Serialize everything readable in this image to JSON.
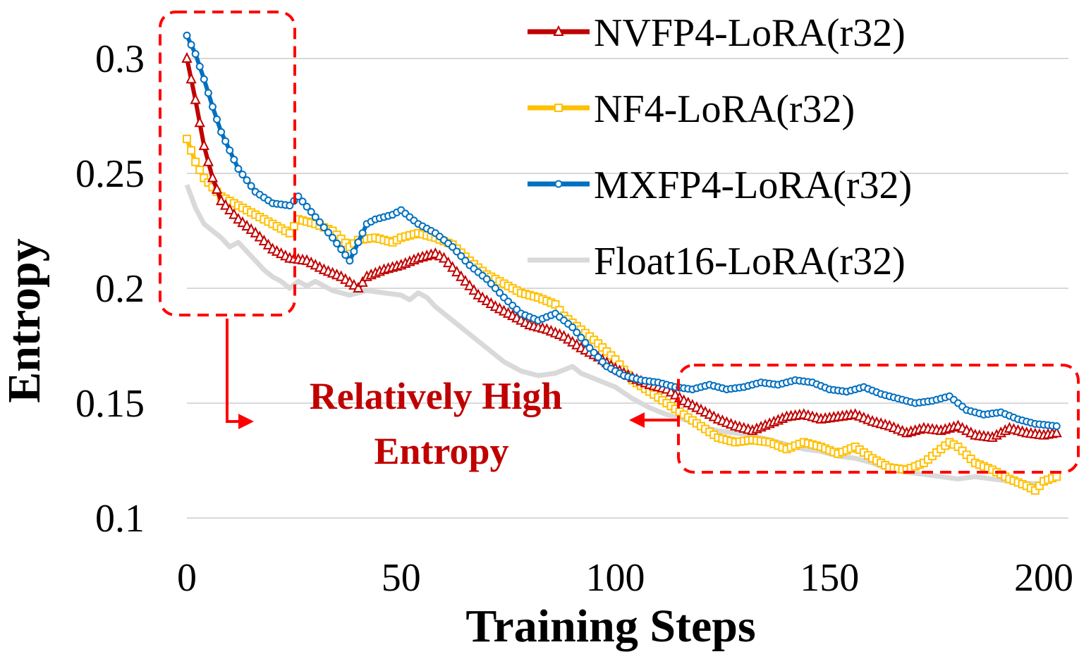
{
  "chart_data": {
    "type": "line",
    "title": "",
    "xlabel": "Training Steps",
    "ylabel": "Entropy",
    "xlim": [
      0,
      200
    ],
    "ylim": [
      0.1,
      0.3
    ],
    "x_ticks": [
      0,
      50,
      100,
      150,
      200
    ],
    "x_tick_labels": [
      "0",
      "50",
      "100",
      "150",
      "200"
    ],
    "y_ticks": [
      0.1,
      0.15,
      0.2,
      0.25,
      0.3
    ],
    "y_tick_labels": [
      "0.1",
      "0.15",
      "0.2",
      "0.25",
      "0.3"
    ],
    "grid": "horizontal",
    "legend_position": "top-right",
    "series": [
      {
        "name": "NVFP4-LoRA(r32)",
        "color": "#c00000",
        "marker": "triangle",
        "points": [
          [
            0,
            0.3
          ],
          [
            2,
            0.282
          ],
          [
            4,
            0.262
          ],
          [
            6,
            0.248
          ],
          [
            8,
            0.238
          ],
          [
            12,
            0.23
          ],
          [
            16,
            0.224
          ],
          [
            20,
            0.217
          ],
          [
            24,
            0.213
          ],
          [
            28,
            0.212
          ],
          [
            32,
            0.208
          ],
          [
            36,
            0.205
          ],
          [
            40,
            0.2
          ],
          [
            42,
            0.205
          ],
          [
            46,
            0.208
          ],
          [
            50,
            0.21
          ],
          [
            54,
            0.213
          ],
          [
            58,
            0.215
          ],
          [
            60,
            0.213
          ],
          [
            64,
            0.205
          ],
          [
            68,
            0.197
          ],
          [
            72,
            0.192
          ],
          [
            76,
            0.188
          ],
          [
            80,
            0.184
          ],
          [
            84,
            0.182
          ],
          [
            88,
            0.179
          ],
          [
            92,
            0.174
          ],
          [
            96,
            0.17
          ],
          [
            100,
            0.165
          ],
          [
            104,
            0.161
          ],
          [
            108,
            0.158
          ],
          [
            112,
            0.156
          ],
          [
            116,
            0.151
          ],
          [
            120,
            0.147
          ],
          [
            124,
            0.143
          ],
          [
            128,
            0.14
          ],
          [
            132,
            0.138
          ],
          [
            136,
            0.141
          ],
          [
            140,
            0.144
          ],
          [
            144,
            0.145
          ],
          [
            148,
            0.143
          ],
          [
            152,
            0.144
          ],
          [
            156,
            0.145
          ],
          [
            160,
            0.142
          ],
          [
            164,
            0.14
          ],
          [
            168,
            0.137
          ],
          [
            172,
            0.139
          ],
          [
            176,
            0.138
          ],
          [
            180,
            0.14
          ],
          [
            184,
            0.136
          ],
          [
            188,
            0.135
          ],
          [
            192,
            0.139
          ],
          [
            196,
            0.137
          ],
          [
            200,
            0.136
          ],
          [
            203,
            0.137
          ]
        ]
      },
      {
        "name": "NF4-LoRA(r32)",
        "color": "#ffc000",
        "marker": "square",
        "points": [
          [
            0,
            0.265
          ],
          [
            2,
            0.255
          ],
          [
            4,
            0.248
          ],
          [
            6,
            0.244
          ],
          [
            8,
            0.24
          ],
          [
            12,
            0.236
          ],
          [
            16,
            0.232
          ],
          [
            20,
            0.228
          ],
          [
            24,
            0.224
          ],
          [
            26,
            0.23
          ],
          [
            30,
            0.228
          ],
          [
            34,
            0.225
          ],
          [
            38,
            0.218
          ],
          [
            40,
            0.221
          ],
          [
            44,
            0.222
          ],
          [
            48,
            0.22
          ],
          [
            50,
            0.222
          ],
          [
            54,
            0.224
          ],
          [
            58,
            0.222
          ],
          [
            62,
            0.219
          ],
          [
            66,
            0.212
          ],
          [
            70,
            0.206
          ],
          [
            74,
            0.202
          ],
          [
            78,
            0.198
          ],
          [
            82,
            0.196
          ],
          [
            86,
            0.193
          ],
          [
            88,
            0.188
          ],
          [
            92,
            0.182
          ],
          [
            96,
            0.176
          ],
          [
            100,
            0.169
          ],
          [
            104,
            0.16
          ],
          [
            108,
            0.155
          ],
          [
            112,
            0.15
          ],
          [
            116,
            0.145
          ],
          [
            120,
            0.14
          ],
          [
            124,
            0.135
          ],
          [
            128,
            0.133
          ],
          [
            132,
            0.134
          ],
          [
            136,
            0.133
          ],
          [
            140,
            0.13
          ],
          [
            144,
            0.133
          ],
          [
            148,
            0.131
          ],
          [
            152,
            0.128
          ],
          [
            156,
            0.131
          ],
          [
            160,
            0.126
          ],
          [
            164,
            0.122
          ],
          [
            168,
            0.121
          ],
          [
            172,
            0.124
          ],
          [
            176,
            0.13
          ],
          [
            178,
            0.133
          ],
          [
            180,
            0.131
          ],
          [
            184,
            0.124
          ],
          [
            188,
            0.121
          ],
          [
            192,
            0.117
          ],
          [
            196,
            0.114
          ],
          [
            198,
            0.112
          ],
          [
            200,
            0.116
          ],
          [
            203,
            0.118
          ]
        ]
      },
      {
        "name": "MXFP4-LoRA(r32)",
        "color": "#0070c0",
        "marker": "circle",
        "points": [
          [
            0,
            0.31
          ],
          [
            2,
            0.302
          ],
          [
            4,
            0.291
          ],
          [
            6,
            0.279
          ],
          [
            8,
            0.268
          ],
          [
            10,
            0.26
          ],
          [
            12,
            0.252
          ],
          [
            16,
            0.242
          ],
          [
            20,
            0.237
          ],
          [
            24,
            0.236
          ],
          [
            26,
            0.24
          ],
          [
            30,
            0.231
          ],
          [
            34,
            0.222
          ],
          [
            38,
            0.212
          ],
          [
            40,
            0.22
          ],
          [
            42,
            0.228
          ],
          [
            44,
            0.23
          ],
          [
            48,
            0.232
          ],
          [
            50,
            0.234
          ],
          [
            54,
            0.228
          ],
          [
            58,
            0.224
          ],
          [
            62,
            0.218
          ],
          [
            66,
            0.21
          ],
          [
            70,
            0.204
          ],
          [
            74,
            0.196
          ],
          [
            78,
            0.189
          ],
          [
            82,
            0.186
          ],
          [
            86,
            0.189
          ],
          [
            90,
            0.183
          ],
          [
            94,
            0.174
          ],
          [
            98,
            0.166
          ],
          [
            102,
            0.162
          ],
          [
            106,
            0.16
          ],
          [
            110,
            0.159
          ],
          [
            114,
            0.157
          ],
          [
            118,
            0.156
          ],
          [
            122,
            0.158
          ],
          [
            126,
            0.156
          ],
          [
            130,
            0.157
          ],
          [
            134,
            0.159
          ],
          [
            138,
            0.158
          ],
          [
            142,
            0.16
          ],
          [
            146,
            0.159
          ],
          [
            150,
            0.156
          ],
          [
            154,
            0.155
          ],
          [
            158,
            0.157
          ],
          [
            162,
            0.154
          ],
          [
            166,
            0.152
          ],
          [
            170,
            0.15
          ],
          [
            174,
            0.151
          ],
          [
            178,
            0.153
          ],
          [
            182,
            0.147
          ],
          [
            186,
            0.145
          ],
          [
            190,
            0.146
          ],
          [
            194,
            0.143
          ],
          [
            198,
            0.141
          ],
          [
            203,
            0.14
          ]
        ]
      },
      {
        "name": "Float16-LoRA(r32)",
        "color": "#d9d9d9",
        "marker": "none",
        "points": [
          [
            0,
            0.245
          ],
          [
            2,
            0.235
          ],
          [
            4,
            0.228
          ],
          [
            6,
            0.225
          ],
          [
            8,
            0.222
          ],
          [
            10,
            0.218
          ],
          [
            12,
            0.22
          ],
          [
            14,
            0.216
          ],
          [
            16,
            0.212
          ],
          [
            18,
            0.208
          ],
          [
            20,
            0.205
          ],
          [
            22,
            0.203
          ],
          [
            24,
            0.2
          ],
          [
            26,
            0.203
          ],
          [
            28,
            0.201
          ],
          [
            30,
            0.203
          ],
          [
            34,
            0.199
          ],
          [
            38,
            0.197
          ],
          [
            42,
            0.199
          ],
          [
            46,
            0.198
          ],
          [
            50,
            0.197
          ],
          [
            52,
            0.195
          ],
          [
            54,
            0.198
          ],
          [
            56,
            0.196
          ],
          [
            58,
            0.192
          ],
          [
            62,
            0.186
          ],
          [
            66,
            0.18
          ],
          [
            70,
            0.174
          ],
          [
            74,
            0.168
          ],
          [
            78,
            0.164
          ],
          [
            82,
            0.162
          ],
          [
            86,
            0.163
          ],
          [
            90,
            0.166
          ],
          [
            92,
            0.163
          ],
          [
            96,
            0.16
          ],
          [
            100,
            0.157
          ],
          [
            104,
            0.152
          ],
          [
            108,
            0.148
          ],
          [
            112,
            0.145
          ],
          [
            116,
            0.143
          ],
          [
            120,
            0.14
          ],
          [
            124,
            0.138
          ],
          [
            128,
            0.137
          ],
          [
            132,
            0.136
          ],
          [
            136,
            0.134
          ],
          [
            140,
            0.132
          ],
          [
            144,
            0.13
          ],
          [
            148,
            0.129
          ],
          [
            152,
            0.127
          ],
          [
            156,
            0.126
          ],
          [
            160,
            0.124
          ],
          [
            164,
            0.121
          ],
          [
            168,
            0.12
          ],
          [
            172,
            0.119
          ],
          [
            176,
            0.118
          ],
          [
            180,
            0.117
          ],
          [
            184,
            0.118
          ],
          [
            188,
            0.117
          ],
          [
            192,
            0.116
          ],
          [
            196,
            0.115
          ],
          [
            200,
            0.115
          ],
          [
            203,
            0.118
          ]
        ]
      }
    ],
    "annotation": {
      "text_line1": "Relatively High",
      "text_line2": "Entropy",
      "color": "#c00000"
    }
  }
}
